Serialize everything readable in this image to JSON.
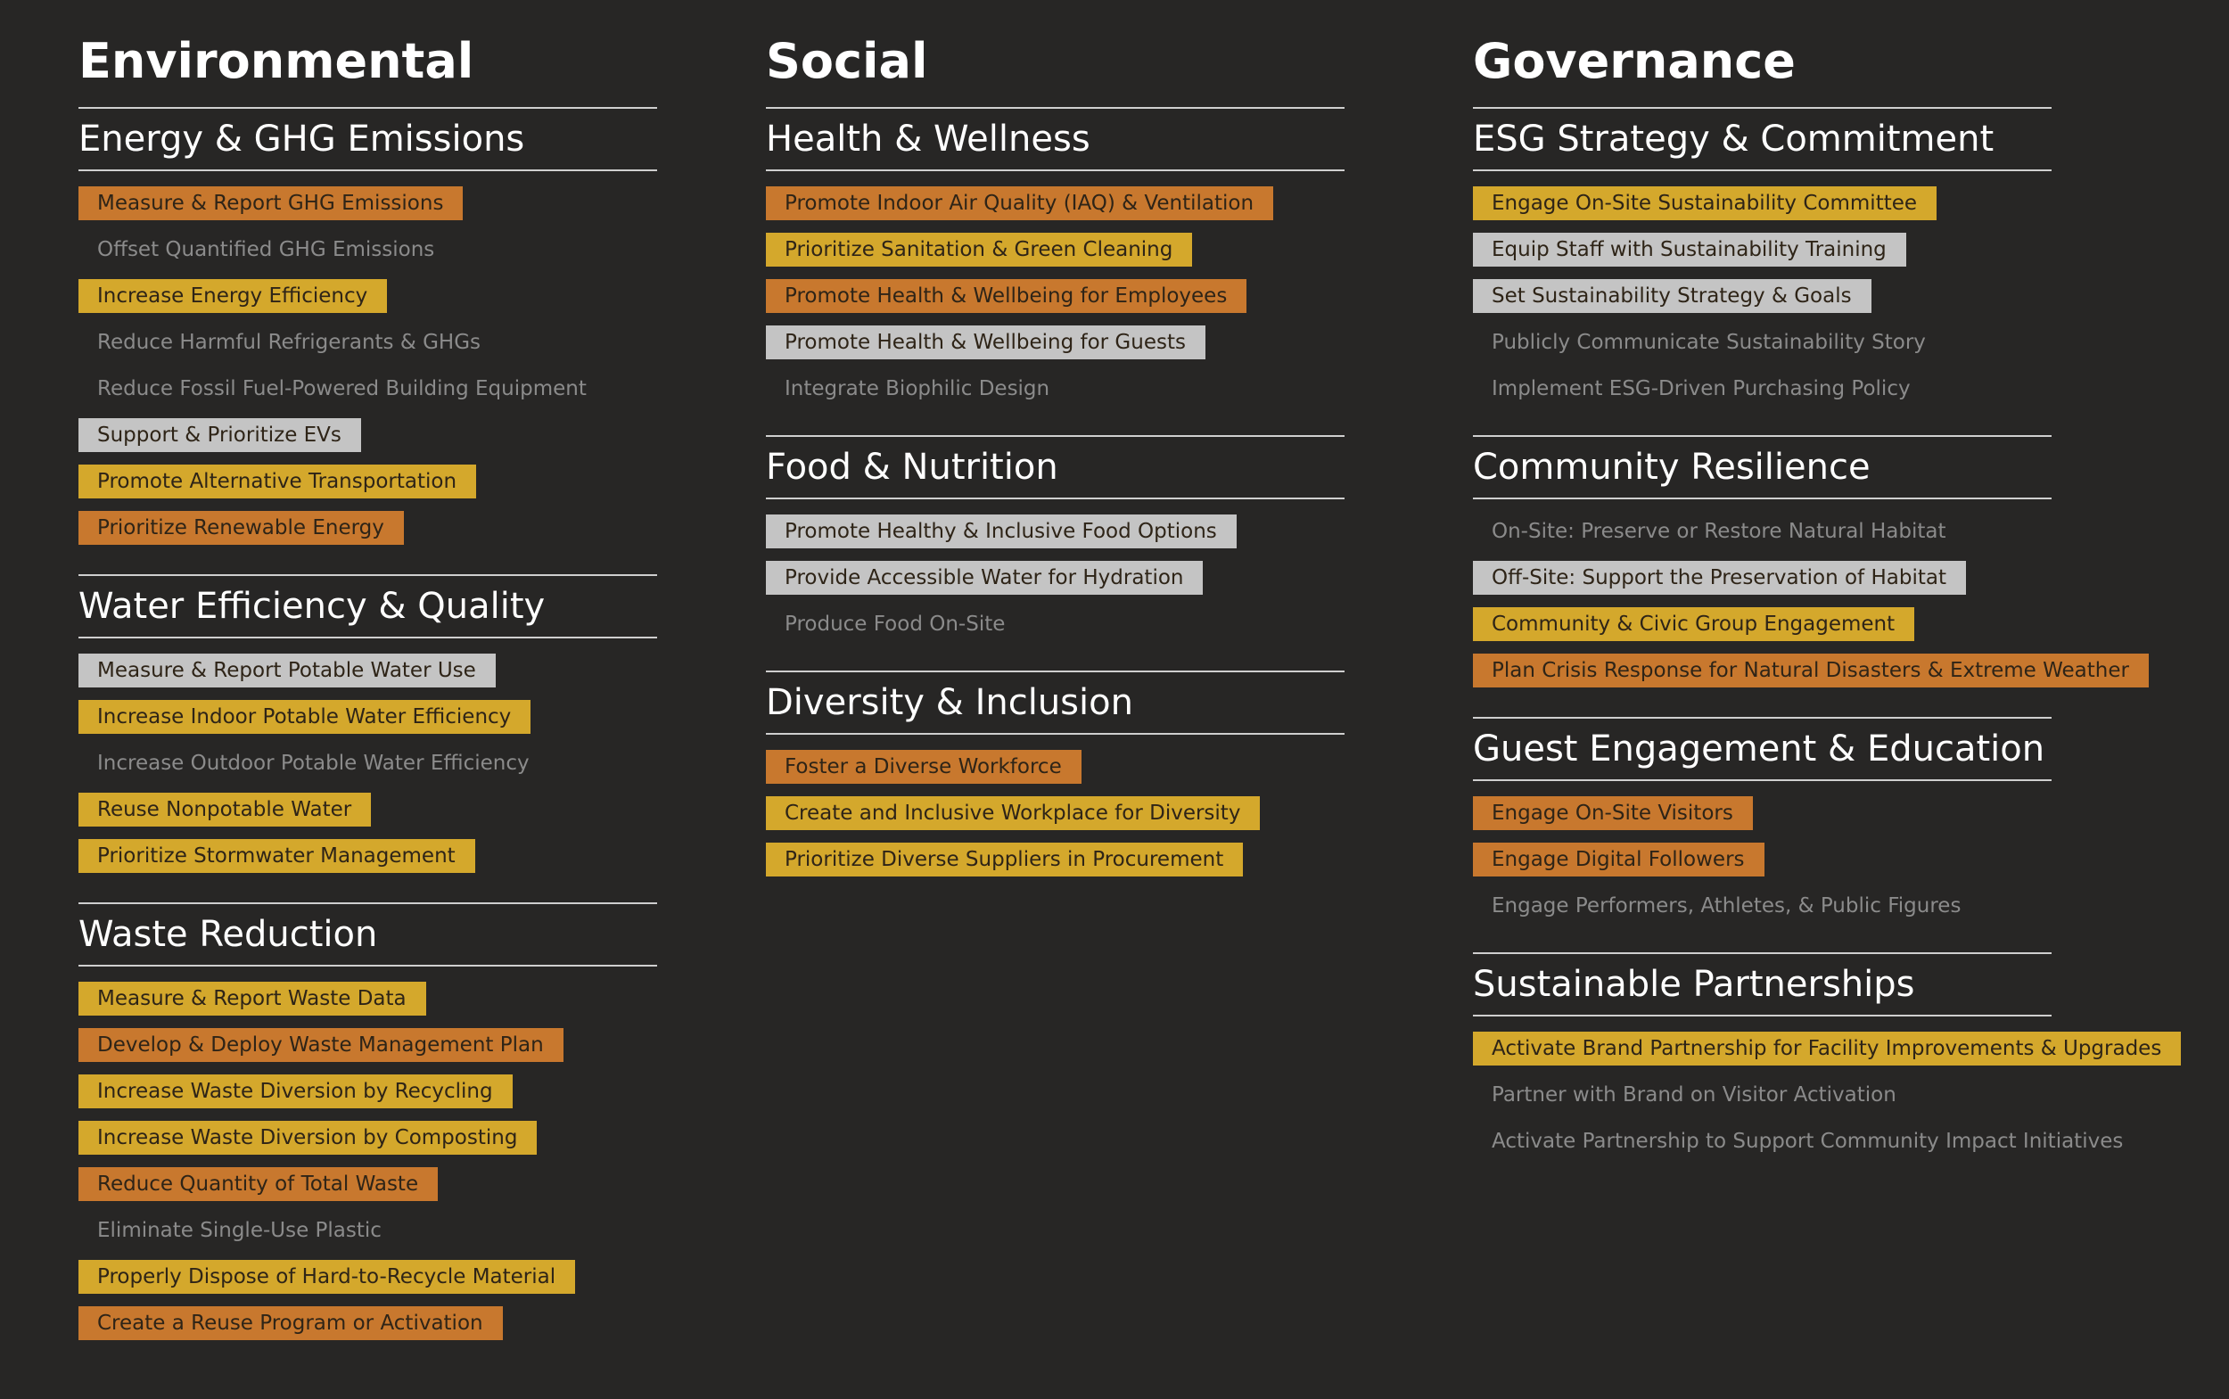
{
  "columns": [
    {
      "title": "Environmental",
      "sections": [
        {
          "heading": "Energy & GHG Emissions",
          "items": [
            {
              "text": "Measure & Report GHG Emissions",
              "highlight": "#c8782e"
            },
            {
              "text": "Offset Quantified GHG Emissions"
            },
            {
              "text": "Increase Energy Efficiency",
              "highlight": "#d4a82c"
            },
            {
              "text": "Reduce Harmful Refrigerants & GHGs"
            },
            {
              "text": "Reduce Fossil Fuel-Powered Building Equipment"
            },
            {
              "text": "Support & Prioritize EVs",
              "highlight": "#c4c4c4"
            },
            {
              "text": "Promote Alternative Transportation",
              "highlight": "#d4a82c"
            },
            {
              "text": "Prioritize Renewable Energy",
              "highlight": "#c8782e"
            }
          ]
        },
        {
          "heading": "Water Efficiency & Quality",
          "items": [
            {
              "text": "Measure & Report Potable Water Use",
              "highlight": "#c4c4c4"
            },
            {
              "text": "Increase Indoor Potable Water Efficiency",
              "highlight": "#d4a82c"
            },
            {
              "text": "Increase Outdoor Potable Water Efficiency"
            },
            {
              "text": "Reuse Nonpotable Water",
              "highlight": "#d4a82c"
            },
            {
              "text": "Prioritize Stormwater Management",
              "highlight": "#d4a82c"
            }
          ]
        },
        {
          "heading": "Waste Reduction",
          "items": [
            {
              "text": "Measure & Report Waste Data",
              "highlight": "#d4a82c"
            },
            {
              "text": "Develop & Deploy Waste Management Plan",
              "highlight": "#c8782e"
            },
            {
              "text": "Increase Waste Diversion by Recycling",
              "highlight": "#d4a82c"
            },
            {
              "text": "Increase Waste Diversion by Composting",
              "highlight": "#d4a82c"
            },
            {
              "text": "Reduce Quantity of Total Waste",
              "highlight": "#c8782e"
            },
            {
              "text": "Eliminate Single-Use Plastic"
            },
            {
              "text": "Properly Dispose of Hard-to-Recycle Material",
              "highlight": "#d4a82c"
            },
            {
              "text": "Create a Reuse Program or Activation",
              "highlight": "#c8782e"
            }
          ]
        }
      ]
    },
    {
      "title": "Social",
      "sections": [
        {
          "heading": "Health & Wellness",
          "items": [
            {
              "text": "Promote Indoor Air Quality (IAQ) & Ventilation",
              "highlight": "#c8782e"
            },
            {
              "text": "Prioritize Sanitation & Green Cleaning",
              "highlight": "#d4a82c"
            },
            {
              "text": "Promote Health & Wellbeing for Employees",
              "highlight": "#c8782e"
            },
            {
              "text": "Promote Health & Wellbeing for Guests",
              "highlight": "#c4c4c4"
            },
            {
              "text": "Integrate Biophilic Design"
            }
          ]
        },
        {
          "heading": "Food & Nutrition",
          "items": [
            {
              "text": "Promote Healthy & Inclusive Food Options",
              "highlight": "#c4c4c4"
            },
            {
              "text": "Provide Accessible Water for Hydration",
              "highlight": "#c4c4c4"
            },
            {
              "text": "Produce Food On-Site"
            }
          ]
        },
        {
          "heading": "Diversity & Inclusion",
          "items": [
            {
              "text": "Foster a Diverse Workforce",
              "highlight": "#c8782e"
            },
            {
              "text": "Create and Inclusive Workplace for Diversity",
              "highlight": "#d4a82c"
            },
            {
              "text": "Prioritize Diverse Suppliers in Procurement",
              "highlight": "#d4a82c"
            }
          ]
        }
      ]
    },
    {
      "title": "Governance",
      "sections": [
        {
          "heading": "ESG Strategy & Commitment",
          "items": [
            {
              "text": "Engage On-Site Sustainability Committee",
              "highlight": "#d4a82c"
            },
            {
              "text": "Equip Staff with Sustainability Training",
              "highlight": "#c4c4c4"
            },
            {
              "text": "Set Sustainability Strategy & Goals",
              "highlight": "#c4c4c4"
            },
            {
              "text": "Publicly Communicate Sustainability Story"
            },
            {
              "text": "Implement ESG-Driven Purchasing Policy"
            }
          ]
        },
        {
          "heading": "Community Resilience",
          "items": [
            {
              "text": "On-Site: Preserve or Restore Natural Habitat"
            },
            {
              "text": "Off-Site: Support the Preservation of Habitat",
              "highlight": "#c4c4c4"
            },
            {
              "text": "Community & Civic Group Engagement",
              "highlight": "#d4a82c"
            },
            {
              "text": "Plan Crisis Response for Natural Disasters & Extreme Weather",
              "highlight": "#c8782e"
            }
          ]
        },
        {
          "heading": "Guest Engagement & Education",
          "items": [
            {
              "text": "Engage On-Site Visitors",
              "highlight": "#c8782e"
            },
            {
              "text": "Engage Digital Followers",
              "highlight": "#c8782e"
            },
            {
              "text": "Engage Performers, Athletes, & Public Figures"
            }
          ]
        },
        {
          "heading": "Sustainable Partnerships",
          "items": [
            {
              "text": "Activate Brand Partnership for Facility Improvements & Upgrades",
              "highlight": "#d4a82c"
            },
            {
              "text": "Partner with Brand on Visitor Activation"
            },
            {
              "text": "Activate Partnership to Support Community Impact Initiatives"
            }
          ]
        }
      ]
    }
  ]
}
